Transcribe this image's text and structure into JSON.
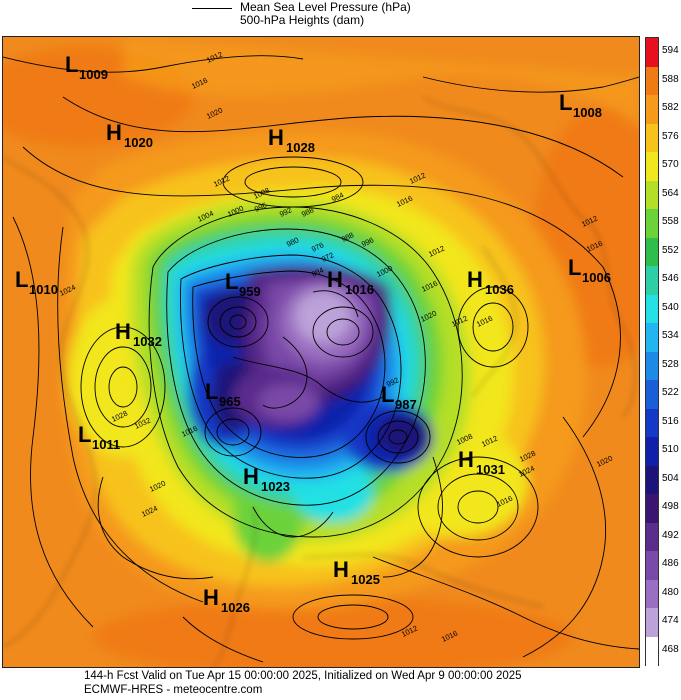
{
  "legend": {
    "mslp_label": "Mean Sea Level Pressure (hPa)",
    "heights_label": "500-hPa Heights (dam)"
  },
  "footer": {
    "line1": "144-h Fcst Valid on Tue Apr 15 00:00:00 2025, Initialized on Wed Apr  9 00:00:00 2025",
    "line2": "ECMWF-HRES  - meteocentre.com"
  },
  "colorbar": {
    "levels": [
      "594",
      "588",
      "582",
      "576",
      "570",
      "564",
      "558",
      "552",
      "546",
      "540",
      "534",
      "528",
      "522",
      "516",
      "510",
      "504",
      "498",
      "492",
      "486",
      "480",
      "474",
      "468"
    ],
    "colors": [
      "#e8101e",
      "#f07a14",
      "#f59a1a",
      "#f7c21c",
      "#f2e61e",
      "#b4df28",
      "#6cd23a",
      "#2fbe4c",
      "#2ecfa6",
      "#24e0e4",
      "#22b6f0",
      "#1e8ae8",
      "#1a5ed8",
      "#1438c8",
      "#1020aa",
      "#1c1478",
      "#3a1670",
      "#5a2c8c",
      "#7a4aa8",
      "#9a6ec0",
      "#bca2d8",
      "#ffffff"
    ]
  },
  "pressure_centers": [
    {
      "type": "L",
      "value": "1009"
    },
    {
      "type": "H",
      "value": "1020"
    },
    {
      "type": "H",
      "value": "1028"
    },
    {
      "type": "L",
      "value": "1008"
    },
    {
      "type": "L",
      "value": "1010"
    },
    {
      "type": "H",
      "value": "1032"
    },
    {
      "type": "L",
      "value": "959"
    },
    {
      "type": "H",
      "value": "1016"
    },
    {
      "type": "H",
      "value": "1036"
    },
    {
      "type": "L",
      "value": "1006"
    },
    {
      "type": "L",
      "value": "965"
    },
    {
      "type": "L",
      "value": "987"
    },
    {
      "type": "L",
      "value": "1011"
    },
    {
      "type": "H",
      "value": "1023"
    },
    {
      "type": "H",
      "value": "1031"
    },
    {
      "type": "H",
      "value": "1025"
    },
    {
      "type": "H",
      "value": "1026"
    }
  ],
  "isobar_labels": [
    "1012",
    "1016",
    "1020",
    "1012",
    "1008",
    "1004",
    "1000",
    "996",
    "992",
    "988",
    "984",
    "1012",
    "1016",
    "1024",
    "1028",
    "1032",
    "1016",
    "1020",
    "1024",
    "1012",
    "1016",
    "1020",
    "1012",
    "1016",
    "984",
    "988",
    "996",
    "1000",
    "972",
    "976",
    "980",
    "992",
    "1008",
    "1012",
    "1016",
    "1024",
    "1028",
    "1012",
    "1016",
    "1020",
    "1012",
    "1016"
  ]
}
